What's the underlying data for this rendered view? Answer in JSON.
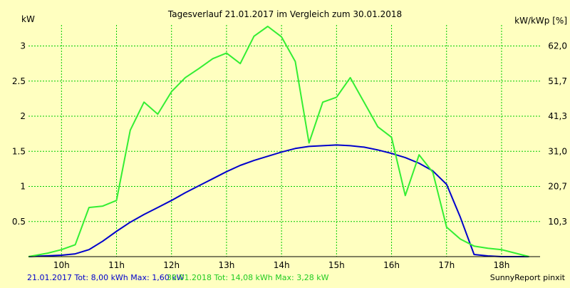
{
  "chart_data": {
    "type": "line",
    "title": "Tagesverlauf 21.01.2017 im Vergleich zum 30.01.2018",
    "ylabel_left": "kW",
    "ylabel_right": "kW/kWp [%]",
    "x_ticks": [
      "10h",
      "11h",
      "12h",
      "13h",
      "14h",
      "15h",
      "16h",
      "17h",
      "18h"
    ],
    "y_ticks_left": [
      "0.5",
      "1",
      "1.5",
      "2",
      "2.5",
      "3"
    ],
    "y_ticks_right": [
      "10,3",
      "20,7",
      "31,0",
      "41,3",
      "51,7",
      "62,0"
    ],
    "xlim": [
      9.4,
      18.7
    ],
    "ylim": [
      0,
      3.3
    ],
    "grid": true,
    "colors": {
      "background": "#FFFFC0",
      "grid": "#00CC00",
      "series_2017": "#0000CC",
      "series_2018": "#33EE33",
      "text": "#000000"
    },
    "series": [
      {
        "name": "21.01.2017",
        "color": "#0000CC",
        "x": [
          9.4,
          9.7,
          10.0,
          10.25,
          10.5,
          10.75,
          11.0,
          11.25,
          11.5,
          11.75,
          12.0,
          12.25,
          12.5,
          12.75,
          13.0,
          13.25,
          13.5,
          13.75,
          14.0,
          14.25,
          14.5,
          14.75,
          15.0,
          15.25,
          15.5,
          15.75,
          16.0,
          16.25,
          16.5,
          16.75,
          17.0,
          17.25,
          17.5,
          17.75,
          18.0,
          18.25,
          18.5
        ],
        "y": [
          0.0,
          0.01,
          0.02,
          0.04,
          0.1,
          0.22,
          0.36,
          0.49,
          0.6,
          0.7,
          0.8,
          0.91,
          1.01,
          1.11,
          1.21,
          1.3,
          1.37,
          1.43,
          1.49,
          1.54,
          1.57,
          1.58,
          1.59,
          1.58,
          1.56,
          1.52,
          1.47,
          1.41,
          1.33,
          1.22,
          1.03,
          0.56,
          0.03,
          0.01,
          0.0,
          0.0,
          0.0
        ]
      },
      {
        "name": "30.01.2018",
        "color": "#33EE33",
        "x": [
          9.4,
          9.75,
          10.0,
          10.25,
          10.5,
          10.75,
          11.0,
          11.25,
          11.5,
          11.75,
          12.0,
          12.25,
          12.5,
          12.75,
          13.0,
          13.25,
          13.5,
          13.75,
          14.0,
          14.25,
          14.5,
          14.75,
          15.0,
          15.25,
          15.5,
          15.75,
          16.0,
          16.25,
          16.5,
          16.75,
          17.0,
          17.25,
          17.5,
          17.75,
          18.0,
          18.25,
          18.5
        ],
        "y": [
          0.0,
          0.05,
          0.1,
          0.17,
          0.7,
          0.72,
          0.8,
          1.8,
          2.2,
          2.03,
          2.35,
          2.55,
          2.68,
          2.82,
          2.9,
          2.75,
          3.14,
          3.28,
          3.13,
          2.78,
          1.62,
          2.2,
          2.27,
          2.55,
          2.2,
          1.85,
          1.7,
          0.87,
          1.45,
          1.2,
          0.42,
          0.25,
          0.15,
          0.12,
          0.1,
          0.05,
          0.0
        ]
      }
    ]
  },
  "footer": {
    "info_2017": "21.01.2017 Tot: 8,00 kWh Max: 1,60 kW",
    "info_2018": "30.01.2018 Tot: 14,08 kWh Max: 3,28 kW",
    "credit": "SunnyReport pinxit"
  }
}
